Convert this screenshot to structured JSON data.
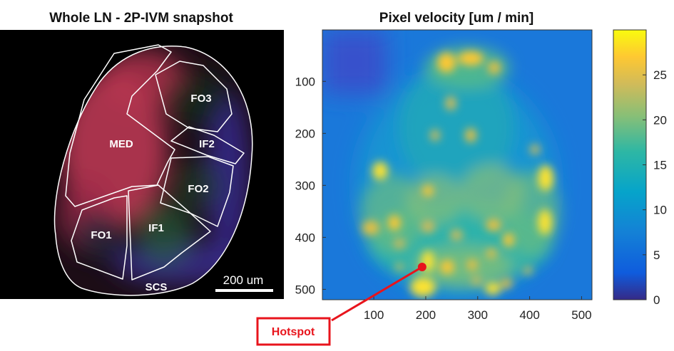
{
  "left_panel": {
    "title": "Whole LN - 2P-IVM snapshot",
    "regions": [
      "FO3",
      "MED",
      "IF2",
      "FO2",
      "FO1",
      "IF1",
      "SCS"
    ],
    "scale_bar_label": "200 um"
  },
  "chart_data": {
    "type": "heatmap",
    "title": "Pixel velocity [um / min]",
    "xticks": [
      100,
      200,
      300,
      400,
      500
    ],
    "yticks": [
      100,
      200,
      300,
      400,
      500
    ],
    "xlim": [
      1,
      520
    ],
    "ylim": [
      1,
      520
    ],
    "colorbar": {
      "ticks": [
        0,
        5,
        10,
        15,
        20,
        25
      ],
      "range": [
        0,
        30
      ],
      "colormap": "parula"
    },
    "annotations": [
      {
        "label": "Hotspot",
        "x": 193,
        "y": 457
      }
    ]
  },
  "colors": {
    "annotation": "#e8141c",
    "outline": "#ffffff"
  }
}
